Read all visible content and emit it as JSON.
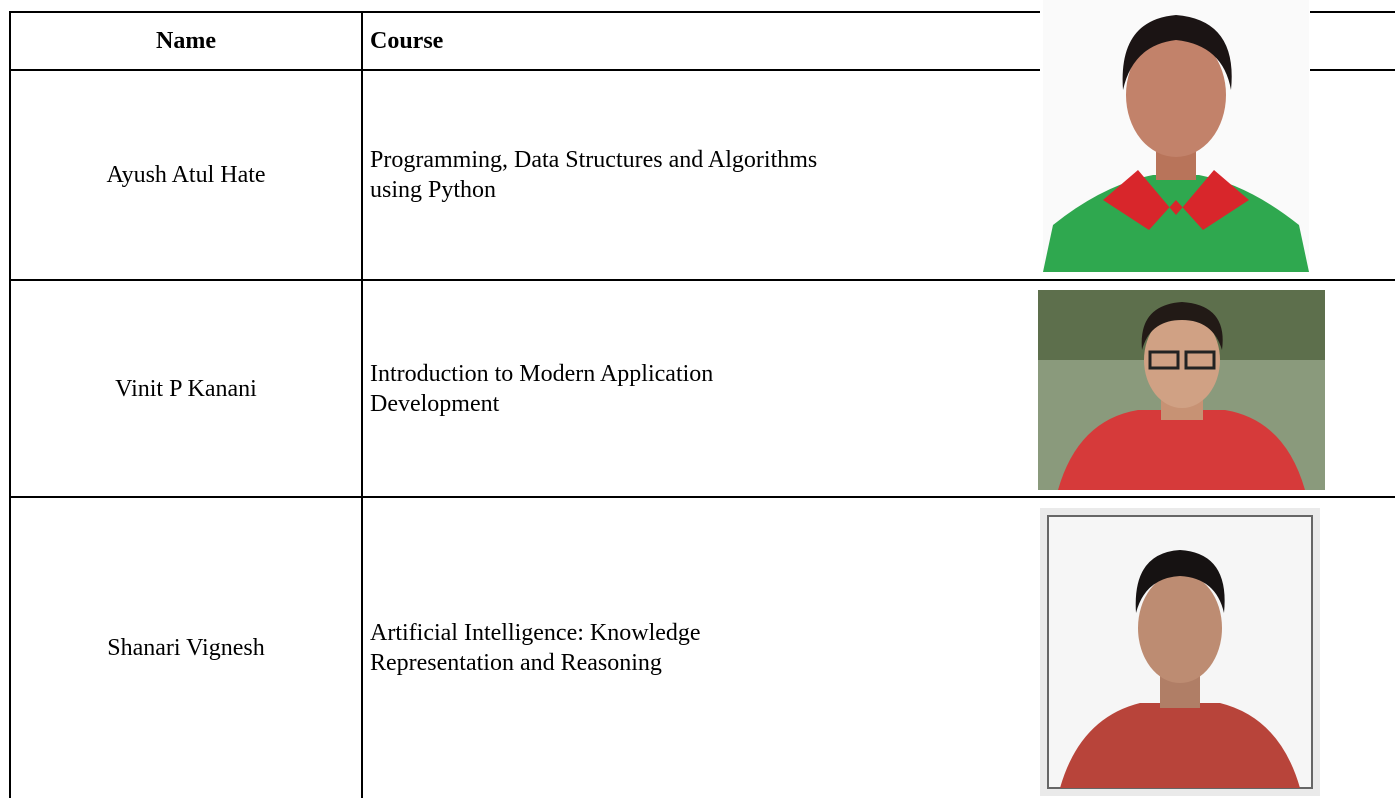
{
  "table": {
    "header": [
      "Name",
      "Course"
    ],
    "rows": [
      [
        "Ayush Atul Hate",
        "Programming, Data Structures and Algorithms using Python"
      ],
      [
        "Vinit P Kanani",
        "Introduction to Modern Application Development"
      ],
      [
        "Shanari Vignesh",
        "Artificial Intelligence: Knowledge Representation and Reasoning"
      ]
    ]
  }
}
